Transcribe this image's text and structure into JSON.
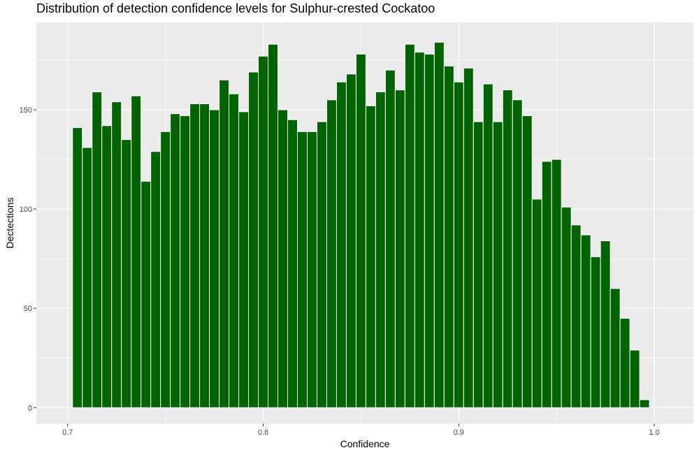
{
  "chart_data": {
    "type": "bar",
    "title": "Distribution of detection confidence levels for Sulphur-crested Cockatoo",
    "xlabel": "Confidence",
    "ylabel": "Dectections",
    "xlim": [
      0.684,
      1.02
    ],
    "ylim": [
      -8,
      194
    ],
    "x_ticks": [
      0.7,
      0.8,
      0.9,
      1.0
    ],
    "x_tick_labels": [
      "0.7",
      "0.8",
      "0.9",
      "1.0"
    ],
    "y_ticks": [
      0,
      50,
      100,
      150
    ],
    "y_tick_labels": [
      "0",
      "50",
      "100",
      "150"
    ],
    "bin_start": 0.7025,
    "bin_width": 0.005,
    "values": [
      141,
      131,
      159,
      142,
      154,
      135,
      157,
      114,
      129,
      139,
      148,
      147,
      153,
      153,
      150,
      165,
      158,
      149,
      169,
      177,
      183,
      150,
      145,
      139,
      139,
      144,
      155,
      164,
      168,
      178,
      152,
      159,
      170,
      160,
      183,
      179,
      178,
      184,
      172,
      164,
      171,
      144,
      163,
      144,
      160,
      155,
      147,
      105,
      124,
      125,
      101,
      92,
      87,
      76,
      84,
      60,
      45,
      29,
      4
    ],
    "bar_color": "#006400",
    "bar_outline": "#ffffff",
    "panel_background": "#ebebeb",
    "grid": true,
    "legend": "none"
  }
}
